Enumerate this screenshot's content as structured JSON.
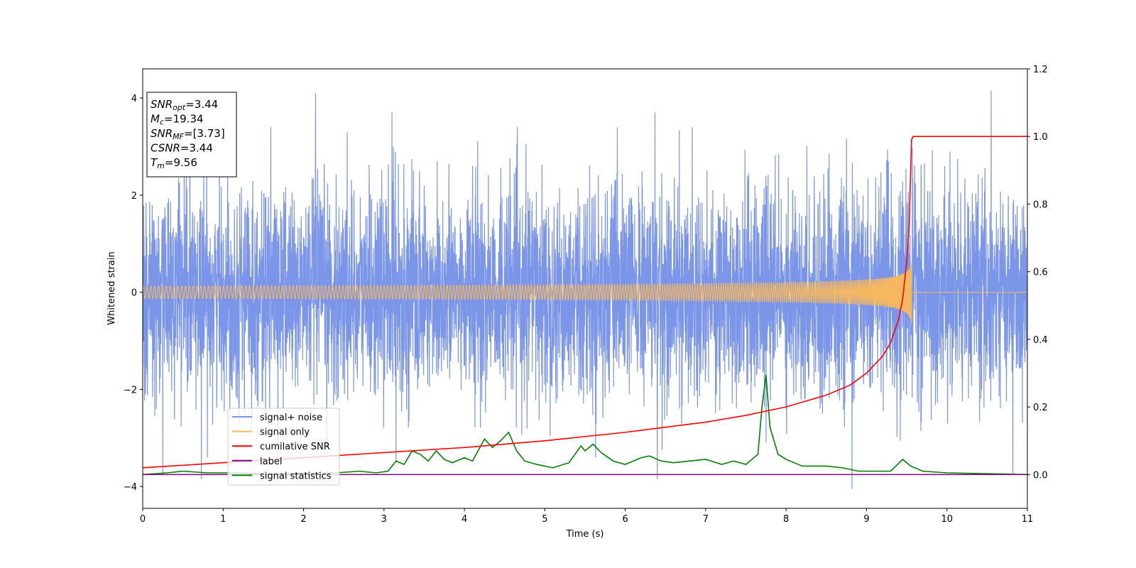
{
  "chart_data": {
    "type": "line",
    "title": "",
    "xlabel": "Time (s)",
    "ylabel": "Whitened strain",
    "ylabel_right": "",
    "xlim": [
      0,
      11
    ],
    "ylim": [
      -4.45,
      4.6
    ],
    "ylim_right": [
      -0.1,
      1.2
    ],
    "x_ticks": [
      0,
      1,
      2,
      3,
      4,
      5,
      6,
      7,
      8,
      9,
      10,
      11
    ],
    "y_ticks": [
      -4,
      -2,
      0,
      2,
      4
    ],
    "y_ticks_right": [
      0.0,
      0.2,
      0.4,
      0.6,
      0.8,
      1.0,
      1.2
    ],
    "grid": false,
    "legend_position": "lower-left",
    "series": [
      {
        "name": "signal+ noise",
        "color": "#7b95e8",
        "axis": "left",
        "kind": "noise",
        "std": 1.05,
        "peak_points": [
          {
            "x": 0.25,
            "y": -3.75
          },
          {
            "x": 0.73,
            "y": -3.85
          },
          {
            "x": 2.15,
            "y": 4.1
          },
          {
            "x": 3.1,
            "y": 3.7
          },
          {
            "x": 3.15,
            "y": -3.5
          },
          {
            "x": 6.37,
            "y": 3.7
          },
          {
            "x": 6.4,
            "y": -3.85
          },
          {
            "x": 7.75,
            "y": -3.1
          },
          {
            "x": 8.82,
            "y": -4.05
          },
          {
            "x": 10.55,
            "y": 4.15
          },
          {
            "x": 10.82,
            "y": -3.75
          }
        ]
      },
      {
        "name": "signal only",
        "color": "#f5b860",
        "axis": "left",
        "kind": "chirp",
        "merger_time": 9.56,
        "peak_amplitude": 0.72
      },
      {
        "name": "cumilative SNR",
        "color": "#ff0000",
        "axis": "right",
        "x": [
          0,
          1,
          2,
          3,
          4,
          5,
          6,
          7,
          7.5,
          8,
          8.5,
          8.8,
          9.0,
          9.2,
          9.3,
          9.4,
          9.45,
          9.5,
          9.53,
          9.56,
          9.58,
          11
        ],
        "values": [
          0.02,
          0.035,
          0.05,
          0.065,
          0.08,
          0.1,
          0.125,
          0.155,
          0.175,
          0.2,
          0.235,
          0.265,
          0.3,
          0.35,
          0.39,
          0.46,
          0.52,
          0.63,
          0.73,
          0.99,
          1.0,
          1.0
        ]
      },
      {
        "name": "label",
        "color": "#800080",
        "axis": "right",
        "x": [
          0,
          11
        ],
        "values": [
          0.0,
          0.0
        ]
      },
      {
        "name": "signal statistics",
        "color": "#008000",
        "axis": "right",
        "x": [
          0,
          0.3,
          0.5,
          0.8,
          1.2,
          1.6,
          2.0,
          2.4,
          2.7,
          2.9,
          3.05,
          3.15,
          3.25,
          3.35,
          3.45,
          3.55,
          3.65,
          3.75,
          3.85,
          4.0,
          4.1,
          4.25,
          4.35,
          4.45,
          4.55,
          4.65,
          4.75,
          4.9,
          5.1,
          5.3,
          5.45,
          5.5,
          5.6,
          5.7,
          5.85,
          6.0,
          6.2,
          6.3,
          6.45,
          6.6,
          6.8,
          7.0,
          7.2,
          7.35,
          7.5,
          7.65,
          7.7,
          7.75,
          7.8,
          7.9,
          8.0,
          8.2,
          8.5,
          8.7,
          8.9,
          9.1,
          9.3,
          9.45,
          9.55,
          9.7,
          10.0,
          11
        ],
        "values": [
          0.0,
          0.005,
          0.01,
          0.005,
          0.005,
          0.0,
          0.005,
          0.005,
          0.01,
          0.005,
          0.01,
          0.04,
          0.03,
          0.07,
          0.06,
          0.04,
          0.07,
          0.045,
          0.035,
          0.05,
          0.04,
          0.105,
          0.08,
          0.1,
          0.125,
          0.07,
          0.04,
          0.03,
          0.02,
          0.035,
          0.085,
          0.07,
          0.09,
          0.065,
          0.04,
          0.03,
          0.05,
          0.055,
          0.04,
          0.035,
          0.04,
          0.045,
          0.03,
          0.04,
          0.03,
          0.06,
          0.2,
          0.295,
          0.14,
          0.06,
          0.045,
          0.025,
          0.025,
          0.02,
          0.01,
          0.01,
          0.01,
          0.045,
          0.025,
          0.01,
          0.005,
          0.0
        ]
      }
    ],
    "annotation": {
      "lines": [
        {
          "name": "SNR",
          "sub": "opt",
          "value": "=3.44"
        },
        {
          "name": "M",
          "sub": "c",
          "value": "=19.34"
        },
        {
          "name": "SNR",
          "sub": "MF",
          "value": "=[3.73]"
        },
        {
          "name": "CSNR",
          "sub": "",
          "value": "=3.44"
        },
        {
          "name": "T",
          "sub": "m",
          "value": "=9.56"
        }
      ]
    }
  }
}
